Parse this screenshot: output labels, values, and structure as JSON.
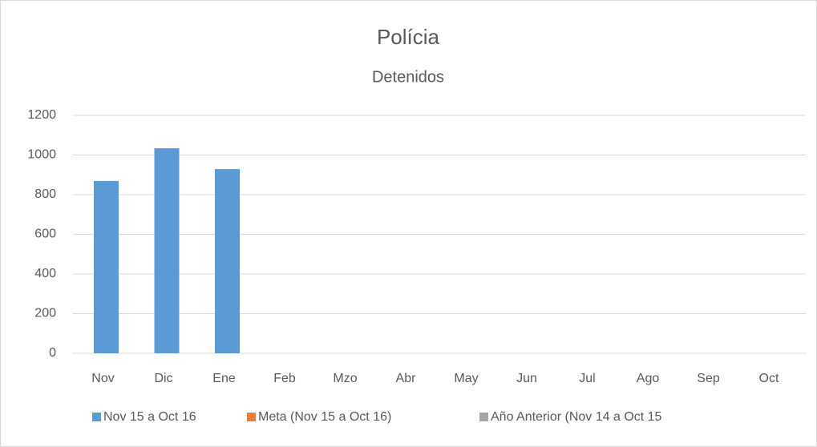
{
  "chart_data": {
    "type": "bar",
    "title": "Polícia",
    "subtitle": "Detenidos",
    "categories": [
      "Nov",
      "Dic",
      "Ene",
      "Feb",
      "Mzo",
      "Abr",
      "May",
      "Jun",
      "Jul",
      "Ago",
      "Sep",
      "Oct"
    ],
    "series": [
      {
        "name": "Nov 15 a Oct 16",
        "color": "#5b9bd5",
        "values": [
          869,
          1034,
          929,
          null,
          null,
          null,
          null,
          null,
          null,
          null,
          null,
          null
        ]
      },
      {
        "name": "Meta (Nov 15 a Oct 16)",
        "color": "#ed7d31",
        "values": [
          null,
          null,
          null,
          null,
          null,
          null,
          null,
          null,
          null,
          null,
          null,
          null
        ]
      },
      {
        "name": "Año Anterior (Nov 14 a Oct 15",
        "color": "#a5a5a5",
        "values": [
          null,
          null,
          null,
          null,
          null,
          null,
          null,
          null,
          null,
          null,
          null,
          null
        ]
      }
    ],
    "ylim": [
      0,
      1200
    ],
    "yticks": [
      0,
      200,
      400,
      600,
      800,
      1000,
      1200
    ],
    "grid": true,
    "legend": "bottom"
  }
}
